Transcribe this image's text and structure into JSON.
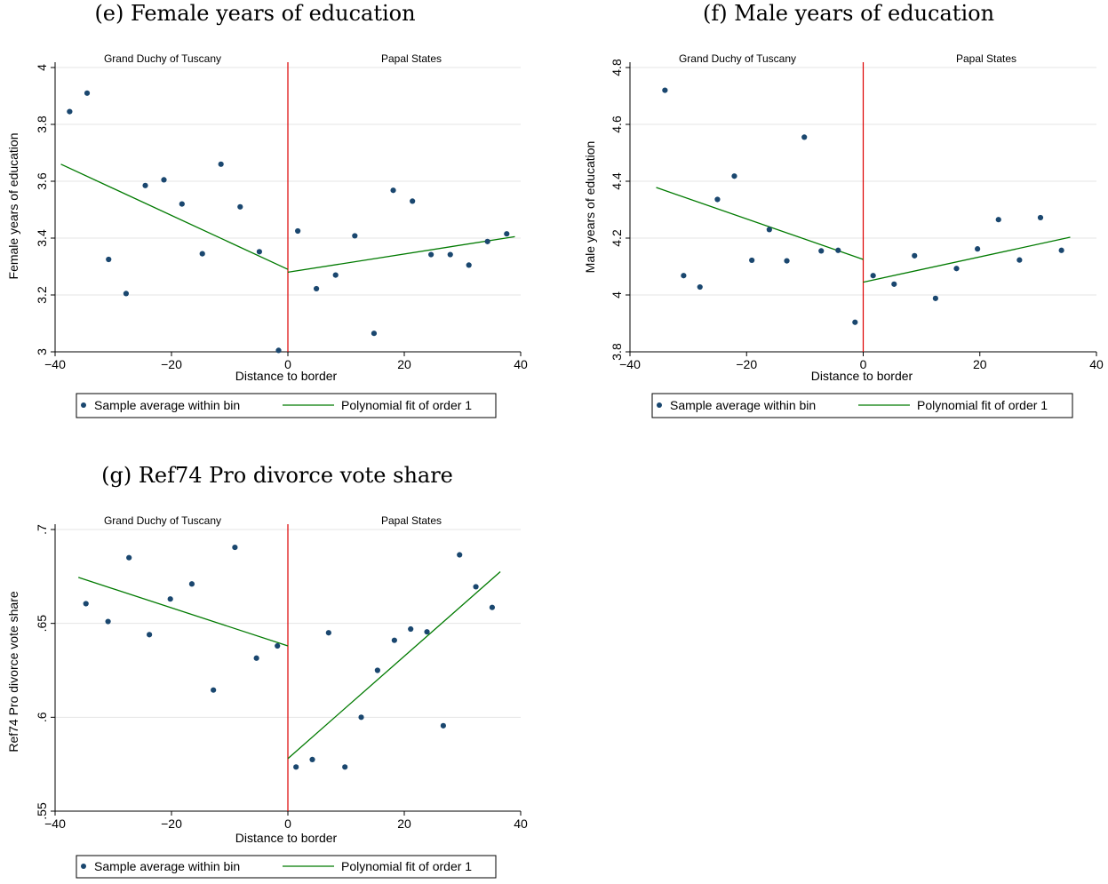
{
  "colors": {
    "points": "#1a476f",
    "fit": "#007a00",
    "border_line": "#dd0000",
    "grid": "#e5e5e5"
  },
  "legend": {
    "points_label": "Sample average within bin",
    "fit_label": "Polynomial fit of order 1"
  },
  "chart_data": [
    {
      "type": "scatter",
      "title": "(e) Female years of education",
      "xlabel": "Distance to border",
      "ylabel": "Female years of education",
      "left_region": "Grand Duchy of Tuscany",
      "right_region": "Papal States",
      "xlim": [
        -40,
        40
      ],
      "ylim": [
        3,
        4
      ],
      "xticks": [
        -40,
        -20,
        0,
        20,
        40
      ],
      "xtick_labels": [
        "−40",
        "−20",
        "0",
        "20",
        "40"
      ],
      "yticks": [
        3,
        3.2,
        3.4,
        3.6,
        3.8,
        4
      ],
      "ytick_labels": [
        "3",
        "3.2",
        "3.4",
        "3.6",
        "3.8",
        "4"
      ],
      "grid": true,
      "points": [
        [
          -37.5,
          3.845
        ],
        [
          -34.5,
          3.91
        ],
        [
          -30.8,
          3.325
        ],
        [
          -27.8,
          3.205
        ],
        [
          -24.5,
          3.585
        ],
        [
          -21.3,
          3.605
        ],
        [
          -18.2,
          3.52
        ],
        [
          -14.7,
          3.345
        ],
        [
          -11.5,
          3.66
        ],
        [
          -8.2,
          3.51
        ],
        [
          -4.9,
          3.352
        ],
        [
          -1.6,
          3.005
        ],
        [
          1.7,
          3.425
        ],
        [
          4.9,
          3.222
        ],
        [
          8.2,
          3.27
        ],
        [
          11.5,
          3.408
        ],
        [
          14.8,
          3.065
        ],
        [
          18.1,
          3.568
        ],
        [
          21.4,
          3.53
        ],
        [
          24.6,
          3.342
        ],
        [
          27.9,
          3.342
        ],
        [
          31.1,
          3.305
        ],
        [
          34.3,
          3.388
        ],
        [
          37.6,
          3.415
        ]
      ],
      "fit_lines": [
        [
          [
            -39,
            3.66
          ],
          [
            0,
            3.29
          ]
        ],
        [
          [
            0,
            3.28
          ],
          [
            39,
            3.405
          ]
        ]
      ],
      "legend_position": "bottom"
    },
    {
      "type": "scatter",
      "title": "(f) Male years of education",
      "xlabel": "Distance to border",
      "ylabel": "Male years of education",
      "left_region": "Grand Duchy of Tuscany",
      "right_region": "Papal States",
      "xlim": [
        -40,
        40
      ],
      "ylim": [
        3.8,
        4.8
      ],
      "xticks": [
        -40,
        -20,
        0,
        20,
        40
      ],
      "xtick_labels": [
        "−40",
        "−20",
        "0",
        "20",
        "40"
      ],
      "yticks": [
        3.8,
        4,
        4.2,
        4.4,
        4.6,
        4.8
      ],
      "ytick_labels": [
        "3.8",
        "4",
        "4.2",
        "4.4",
        "4.6",
        "4.8"
      ],
      "grid": true,
      "points": [
        [
          -34.0,
          4.72
        ],
        [
          -30.8,
          4.068
        ],
        [
          -28.0,
          4.028
        ],
        [
          -25.0,
          4.336
        ],
        [
          -22.1,
          4.418
        ],
        [
          -19.1,
          4.122
        ],
        [
          -16.1,
          4.23
        ],
        [
          -13.1,
          4.12
        ],
        [
          -10.1,
          4.555
        ],
        [
          -7.2,
          4.155
        ],
        [
          -4.3,
          4.157
        ],
        [
          -1.4,
          3.904
        ],
        [
          1.7,
          4.068
        ],
        [
          5.3,
          4.038
        ],
        [
          8.8,
          4.138
        ],
        [
          12.4,
          3.988
        ],
        [
          16.0,
          4.093
        ],
        [
          19.6,
          4.162
        ],
        [
          23.2,
          4.265
        ],
        [
          26.8,
          4.123
        ],
        [
          30.4,
          4.272
        ],
        [
          34.0,
          4.157
        ]
      ],
      "fit_lines": [
        [
          [
            -35.5,
            4.378
          ],
          [
            0,
            4.125
          ]
        ],
        [
          [
            0,
            4.045
          ],
          [
            35.5,
            4.203
          ]
        ]
      ],
      "legend_position": "bottom"
    },
    {
      "type": "scatter",
      "title": "(g) Ref74 Pro divorce vote share",
      "xlabel": "Distance to border",
      "ylabel": "Ref74 Pro divorce vote share",
      "left_region": "Grand Duchy of Tuscany",
      "right_region": "Papal States",
      "xlim": [
        -40,
        40
      ],
      "ylim": [
        0.55,
        0.7
      ],
      "xticks": [
        -40,
        -20,
        0,
        20,
        40
      ],
      "xtick_labels": [
        "−40",
        "−20",
        "0",
        "20",
        "40"
      ],
      "yticks": [
        0.55,
        0.6,
        0.65,
        0.7
      ],
      "ytick_labels": [
        ".55",
        ".6",
        ".65",
        ".7"
      ],
      "grid": true,
      "points": [
        [
          -34.7,
          0.6605
        ],
        [
          -30.9,
          0.651
        ],
        [
          -27.3,
          0.685
        ],
        [
          -23.8,
          0.644
        ],
        [
          -20.2,
          0.663
        ],
        [
          -16.5,
          0.671
        ],
        [
          -12.8,
          0.6145
        ],
        [
          -9.1,
          0.6905
        ],
        [
          -5.4,
          0.6315
        ],
        [
          -1.8,
          0.638
        ],
        [
          1.4,
          0.5735
        ],
        [
          4.2,
          0.5775
        ],
        [
          7.0,
          0.645
        ],
        [
          9.8,
          0.5735
        ],
        [
          12.6,
          0.6
        ],
        [
          15.4,
          0.625
        ],
        [
          18.3,
          0.641
        ],
        [
          21.1,
          0.647
        ],
        [
          23.9,
          0.6455
        ],
        [
          26.7,
          0.5955
        ],
        [
          29.5,
          0.6865
        ],
        [
          32.3,
          0.6695
        ],
        [
          35.1,
          0.6585
        ]
      ],
      "fit_lines": [
        [
          [
            -36,
            0.6745
          ],
          [
            0,
            0.638
          ]
        ],
        [
          [
            0,
            0.578
          ],
          [
            36.5,
            0.6775
          ]
        ]
      ],
      "legend_position": "bottom"
    }
  ]
}
